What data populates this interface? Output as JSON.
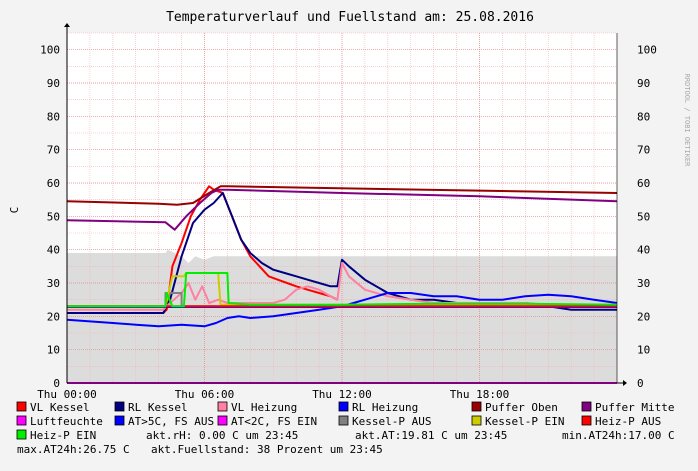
{
  "chart_data": {
    "type": "line",
    "title": "Temperaturverlauf und Fuellstand am: 25.08.2016",
    "ylabel": "C",
    "watermark": "RRDTOOL / TOBI OETIKER",
    "ylim": [
      0,
      105
    ],
    "xlim": [
      0,
      24
    ],
    "y_ticks": [
      0,
      10,
      20,
      30,
      40,
      50,
      60,
      70,
      80,
      90,
      100
    ],
    "x_ticks": [
      {
        "value": 0,
        "label": "Thu 00:00"
      },
      {
        "value": 6,
        "label": "Thu 06:00"
      },
      {
        "value": 12,
        "label": "Thu 12:00"
      },
      {
        "value": 18,
        "label": "Thu 18:00"
      }
    ],
    "grid": true,
    "area": {
      "name": "Fuellstand",
      "x": [
        0,
        4.3,
        4.4,
        5.0,
        5.3,
        5.6,
        6.0,
        6.4,
        7.0,
        8,
        10,
        12,
        14,
        16,
        18,
        20,
        22,
        24
      ],
      "y": [
        39,
        39,
        40,
        38,
        36,
        38,
        37,
        38,
        38,
        38,
        38,
        38,
        38,
        38,
        38,
        38,
        38,
        38
      ],
      "color": "#dcdcdc"
    },
    "series": [
      {
        "name": "VL Kessel",
        "color": "#ff0000",
        "x": [
          0,
          4.2,
          4.35,
          4.6,
          5.0,
          5.4,
          5.8,
          6.0,
          6.2,
          6.4,
          6.8,
          7.2,
          7.6,
          8.0,
          8.4,
          8.8,
          9.2,
          9.6,
          10.0,
          10.5,
          11.0,
          11.5,
          11.8
        ],
        "y": [
          21,
          21,
          22,
          35,
          42,
          50,
          55,
          57,
          59,
          58,
          57,
          50,
          43,
          38,
          35,
          32,
          31,
          30,
          29,
          28,
          27,
          26,
          25
        ]
      },
      {
        "name": "RL Kessel",
        "color": "#000080",
        "x": [
          0,
          4.2,
          4.5,
          5.0,
          5.5,
          6.0,
          6.4,
          6.8,
          7.2,
          7.6,
          8.0,
          8.5,
          9.0,
          9.5,
          10.0,
          10.5,
          11.0,
          11.5,
          11.8,
          12.0,
          12.3,
          13.0,
          14.0,
          15.0,
          16.0,
          17.0,
          18.0,
          19.0,
          20.0,
          21.0,
          22.0,
          23.0,
          24.0
        ],
        "y": [
          21,
          21,
          25,
          38,
          48,
          52,
          54,
          57,
          50,
          43,
          39,
          36,
          34,
          33,
          32,
          31,
          30,
          29,
          29,
          37,
          35,
          31,
          27,
          25,
          25,
          24,
          24,
          24,
          24,
          23,
          22,
          22,
          22
        ]
      },
      {
        "name": "VL Heizung",
        "color": "#ff80a0",
        "x": [
          0,
          4.2,
          4.5,
          5.0,
          5.3,
          5.6,
          5.9,
          6.2,
          6.6,
          7.0,
          8.0,
          9.0,
          9.5,
          10.0,
          10.5,
          11.0,
          11.5,
          11.8,
          12.0,
          12.3,
          13.0,
          14.0,
          15.0,
          16.0,
          17.0,
          18.0,
          20.0,
          22.0,
          24.0
        ],
        "y": [
          22,
          22,
          24,
          27,
          30,
          25,
          29,
          24,
          25,
          24,
          24,
          24,
          25,
          28,
          29,
          28,
          26,
          25,
          36,
          32,
          28,
          26,
          25,
          24,
          24,
          24,
          24,
          23,
          23
        ]
      },
      {
        "name": "RL Heizung",
        "color": "#0000ff",
        "x": [
          0,
          2.0,
          3.0,
          4.0,
          5.0,
          6.0,
          6.5,
          7.0,
          7.5,
          8.0,
          9.0,
          10.0,
          11.0,
          12.0,
          12.5,
          13.0,
          13.5,
          14.0,
          15.0,
          16.0,
          17.0,
          18.0,
          19.0,
          20.0,
          21.0,
          22.0,
          23.0,
          24.0
        ],
        "y": [
          19,
          18,
          17.5,
          17,
          17.5,
          17,
          18,
          19.5,
          20,
          19.5,
          20,
          21,
          22,
          23,
          24,
          25,
          26,
          27,
          27,
          26,
          26,
          25,
          25,
          26,
          26.5,
          26,
          25,
          24
        ]
      },
      {
        "name": "Puffer Oben",
        "color": "#990000",
        "x": [
          0,
          4.0,
          4.8,
          5.5,
          6.2,
          6.7,
          7.0,
          24.0
        ],
        "y": [
          54.5,
          53.8,
          53.5,
          54,
          57,
          59,
          59,
          57
        ]
      },
      {
        "name": "Puffer Mitte",
        "color": "#800080",
        "x": [
          0,
          4.3,
          4.7,
          5.2,
          5.8,
          6.3,
          6.6,
          7.0,
          12.0,
          18.0,
          24.0
        ],
        "y": [
          48.8,
          48.2,
          46,
          50,
          54,
          57,
          58,
          58,
          57,
          56,
          54.5
        ]
      },
      {
        "name": "Luftfeuchte",
        "color": "#ff00ff",
        "x": [
          0,
          24
        ],
        "y": [
          0,
          0
        ]
      },
      {
        "name": "AT>5C, FS AUS",
        "color": "#0000ff",
        "x": [
          0,
          24
        ],
        "y": [
          22.8,
          22.8
        ]
      },
      {
        "name": "AT<2C, FS EIN",
        "color": "#ff00ff",
        "x": [
          0,
          24
        ],
        "y": [
          0,
          0
        ]
      },
      {
        "name": "Kessel-P AUS",
        "color": "#808080",
        "x": [
          0,
          4.3,
          4.3,
          5.0,
          5.0,
          24.0
        ],
        "y": [
          23,
          23,
          27,
          27,
          23,
          23
        ]
      },
      {
        "name": "Kessel-P EIN",
        "color": "#cccc00",
        "x": [
          0,
          4.3,
          4.4,
          4.6,
          5.1,
          5.2,
          6.6,
          6.7,
          24.0
        ],
        "y": [
          23,
          23,
          26,
          32,
          32,
          33,
          33,
          23.5,
          23.5
        ]
      },
      {
        "name": "Heiz-P AUS",
        "color": "#ff0000",
        "x": [
          0,
          24
        ],
        "y": [
          23,
          23
        ]
      },
      {
        "name": "Heiz-P EIN",
        "color": "#00ee00",
        "x": [
          0,
          4.3,
          4.35,
          4.6,
          5.1,
          5.2,
          7.0,
          7.05,
          8.0,
          12.0,
          16.0,
          20.0,
          24.0
        ],
        "y": [
          23,
          23,
          27,
          23,
          23,
          33,
          33,
          24,
          23.5,
          23.5,
          23.8,
          23.8,
          23.5
        ]
      }
    ],
    "legend_rows": [
      [
        {
          "name": "VL Kessel",
          "color": "#ff0000"
        },
        {
          "name": "RL Kessel",
          "color": "#000080"
        },
        {
          "name": "VL Heizung",
          "color": "#ff80a0"
        },
        {
          "name": "RL Heizung",
          "color": "#0000ff"
        },
        {
          "name": "Puffer Oben",
          "color": "#990000"
        },
        {
          "name": "Puffer Mitte",
          "color": "#800080"
        }
      ],
      [
        {
          "name": "Luftfeuchte",
          "color": "#ff00ff"
        },
        {
          "name": "AT>5C, FS AUS",
          "color": "#0000ff"
        },
        {
          "name": "AT<2C, FS EIN",
          "color": "#ff00ff"
        },
        {
          "name": "Kessel-P AUS",
          "color": "#808080"
        },
        {
          "name": "Kessel-P EIN",
          "color": "#cccc00"
        },
        {
          "name": "Heiz-P AUS",
          "color": "#ff0000"
        }
      ]
    ],
    "legend_last": {
      "name": "Heiz-P EIN",
      "color": "#00ee00"
    },
    "stats": {
      "rh": "akt.rH: 0.00 C um 23:45",
      "at": "akt.AT:19.81 C um 23:45",
      "min": "min.AT24h:17.00 C",
      "max": "max.AT24h:26.75 C",
      "fill": "akt.Fuellstand:   38 Prozent um 23:45"
    }
  }
}
